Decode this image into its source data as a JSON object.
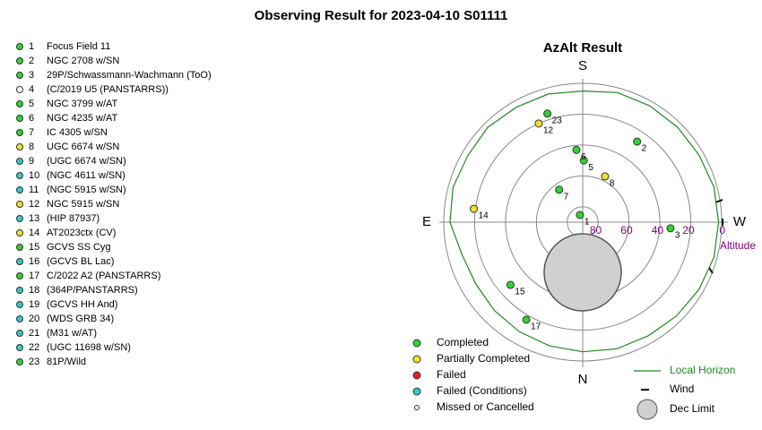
{
  "chart_data": {
    "type": "polar",
    "title": "Observing Result for 2023-04-10 S01111",
    "subtitle": "AzAlt Result",
    "directions": {
      "S": "S",
      "N": "N",
      "E": "E",
      "W": "W"
    },
    "rlabel": "Altitude",
    "rlim": [
      90,
      0
    ],
    "rticks": [
      80,
      60,
      40,
      20,
      0
    ],
    "statuses": [
      {
        "name": "Completed",
        "color": "#2fd52f"
      },
      {
        "name": "Partially Completed",
        "color": "#f2e22c"
      },
      {
        "name": "Failed",
        "color": "#e02020"
      },
      {
        "name": "Failed (Conditions)",
        "color": "#35c8c8"
      },
      {
        "name": "Missed or Cancelled",
        "color": "#ffffff"
      }
    ],
    "targets": [
      {
        "id": 1,
        "name": "Focus Field 11",
        "status": "Completed",
        "az": 159,
        "alt": 85
      },
      {
        "id": 2,
        "name": "NGC 2708 w/SN",
        "status": "Completed",
        "az": 214,
        "alt": 27
      },
      {
        "id": 3,
        "name": "29P/Schwassmann-Wachmann (ToO)",
        "status": "Completed",
        "az": 274,
        "alt": 33
      },
      {
        "id": 4,
        "name": "(C/2019 U5 (PANSTARRS))",
        "status": "Missed or Cancelled"
      },
      {
        "id": 5,
        "name": "NGC 3799 w/AT",
        "status": "Completed",
        "az": 181,
        "alt": 50
      },
      {
        "id": 6,
        "name": "NGC 4235 w/AT",
        "status": "Completed",
        "az": 175,
        "alt": 43
      },
      {
        "id": 7,
        "name": "IC 4305 w/SN",
        "status": "Completed",
        "az": 144,
        "alt": 64
      },
      {
        "id": 8,
        "name": "UGC 6674 w/SN",
        "status": "Partially Completed",
        "az": 206,
        "alt": 57
      },
      {
        "id": 9,
        "name": "(UGC 6674 w/SN)",
        "status": "Failed (Conditions)"
      },
      {
        "id": 10,
        "name": "(NGC 4611 w/SN)",
        "status": "Failed (Conditions)"
      },
      {
        "id": 11,
        "name": "(NGC 5915 w/SN)",
        "status": "Failed (Conditions)"
      },
      {
        "id": 12,
        "name": "NGC 5915 w/SN",
        "status": "Partially Completed",
        "az": 156,
        "alt": 20
      },
      {
        "id": 13,
        "name": "(HIP 87937)",
        "status": "Failed (Conditions)"
      },
      {
        "id": 14,
        "name": "AT2023ctx (CV)",
        "status": "Partially Completed",
        "az": 97,
        "alt": 19
      },
      {
        "id": 15,
        "name": "GCVS SS Cyg",
        "status": "Completed",
        "az": 49,
        "alt": 28
      },
      {
        "id": 16,
        "name": "(GCVS BL Lac)",
        "status": "Failed (Conditions)"
      },
      {
        "id": 17,
        "name": "C/2022 A2 (PANSTARRS)",
        "status": "Completed",
        "az": 30,
        "alt": 17
      },
      {
        "id": 18,
        "name": "(364P/PANSTARRS)",
        "status": "Failed (Conditions)"
      },
      {
        "id": 19,
        "name": "(GCVS HH And)",
        "status": "Failed (Conditions)"
      },
      {
        "id": 20,
        "name": "(WDS GRB 34)",
        "status": "Failed (Conditions)"
      },
      {
        "id": 21,
        "name": "(M31 w/AT)",
        "status": "Failed (Conditions)"
      },
      {
        "id": 22,
        "name": "(UGC 11698 w/SN)",
        "status": "Failed (Conditions)"
      },
      {
        "id": 23,
        "name": "81P/Wild",
        "status": "Completed",
        "az": 162,
        "alt": 16
      }
    ],
    "horizon": {
      "name": "Local Horizon",
      "color": "#1f8a1f",
      "az": [
        0,
        15,
        30,
        45,
        60,
        75,
        90,
        105,
        120,
        135,
        150,
        165,
        180,
        195,
        210,
        225,
        240,
        255,
        270,
        285,
        300,
        315,
        330,
        345
      ],
      "alt": [
        6,
        7,
        8,
        9,
        10,
        9,
        4,
        3,
        4,
        3,
        4,
        4,
        5,
        3,
        3,
        3,
        3,
        2,
        2,
        2,
        3,
        4,
        5,
        5
      ]
    },
    "wind_label": "Wind",
    "dec_limit_label": "Dec Limit"
  }
}
